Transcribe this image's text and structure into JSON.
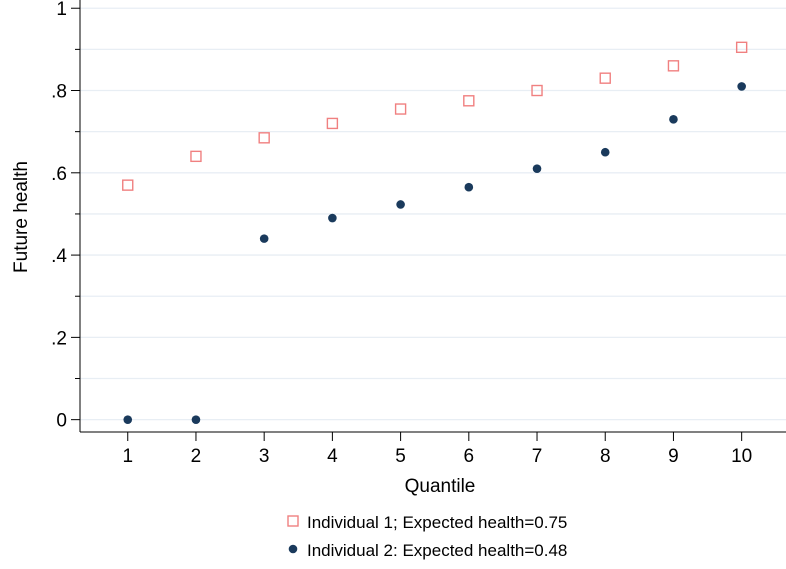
{
  "chart_data": {
    "type": "scatter",
    "xlabel": "Quantile",
    "ylabel": "Future health",
    "xlim": [
      0.3,
      10.65
    ],
    "ylim": [
      -0.03,
      1.02
    ],
    "x_ticks": [
      {
        "value": 1,
        "label": "1"
      },
      {
        "value": 2,
        "label": "2"
      },
      {
        "value": 3,
        "label": "3"
      },
      {
        "value": 4,
        "label": "4"
      },
      {
        "value": 5,
        "label": "5"
      },
      {
        "value": 6,
        "label": "6"
      },
      {
        "value": 7,
        "label": "7"
      },
      {
        "value": 8,
        "label": "8"
      },
      {
        "value": 9,
        "label": "9"
      },
      {
        "value": 10,
        "label": "10"
      }
    ],
    "y_ticks": [
      {
        "value": 0,
        "label": "0"
      },
      {
        "value": 0.2,
        "label": ".2"
      },
      {
        "value": 0.4,
        "label": ".4"
      },
      {
        "value": 0.6,
        "label": ".6"
      },
      {
        "value": 0.8,
        "label": ".8"
      },
      {
        "value": 1,
        "label": "1"
      }
    ],
    "y_minor_ticks": [
      0.1,
      0.3,
      0.5,
      0.7,
      0.9
    ],
    "grid": true,
    "legend_position": "bottom",
    "series": [
      {
        "name": "Individual 1; Expected health=0.75",
        "marker": "hollow-square",
        "color": "#f08080",
        "x": [
          1,
          2,
          3,
          4,
          5,
          6,
          7,
          8,
          9,
          10
        ],
        "y": [
          0.57,
          0.64,
          0.685,
          0.72,
          0.755,
          0.775,
          0.8,
          0.83,
          0.86,
          0.905
        ]
      },
      {
        "name": "Individual 2: Expected health=0.48",
        "marker": "filled-circle",
        "color": "#1a3a5c",
        "x": [
          1,
          2,
          3,
          4,
          5,
          6,
          7,
          8,
          9,
          10
        ],
        "y": [
          0.0,
          0.0,
          0.44,
          0.49,
          0.523,
          0.565,
          0.61,
          0.65,
          0.73,
          0.81
        ]
      }
    ]
  },
  "colors": {
    "grid": "#e8eef4",
    "axis": "#000000"
  }
}
